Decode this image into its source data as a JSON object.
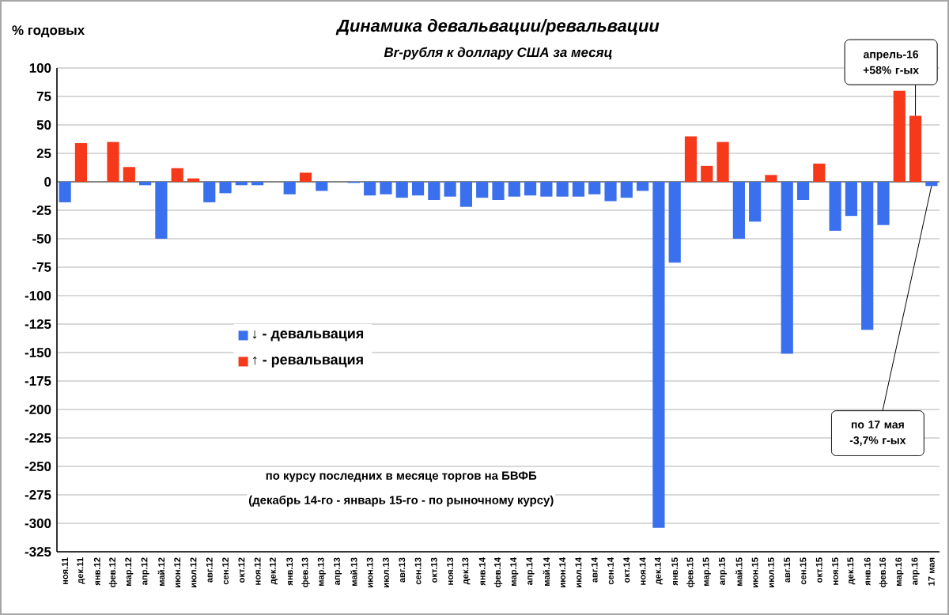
{
  "chart_data": {
    "type": "bar",
    "title": "Динамика девальвации/ревальвации",
    "subtitle": "Br-рубля к доллару США за месяц",
    "ylabel": "% годовых",
    "categories": [
      "ноя.11",
      "дек.11",
      "янв.12",
      "фев.12",
      "мар.12",
      "апр.12",
      "май.12",
      "июн.12",
      "июл.12",
      "авг.12",
      "сен.12",
      "окт.12",
      "ноя.12",
      "дек.12",
      "янв.13",
      "фев.13",
      "мар.13",
      "апр.13",
      "май.13",
      "июн.13",
      "июл.13",
      "авг.13",
      "сен.13",
      "окт.13",
      "ноя.13",
      "дек.13",
      "янв.14",
      "фев.14",
      "мар.14",
      "апр.14",
      "май.14",
      "июн.14",
      "июл.14",
      "авг.14",
      "сен.14",
      "окт.14",
      "ноя.14",
      "дек.14",
      "янв.15",
      "фев.15",
      "мар.15",
      "апр.15",
      "май.15",
      "июн.15",
      "июл.15",
      "авг.15",
      "сен.15",
      "окт.15",
      "ноя.15",
      "дек.15",
      "янв.16",
      "фев.16",
      "мар.16",
      "апр.16",
      "17 мая"
    ],
    "series": [
      {
        "name": "↓ - девальвация",
        "color": "#3a70ee",
        "values": [
          -18,
          null,
          null,
          null,
          null,
          -3,
          -50,
          null,
          null,
          -18,
          -10,
          -3,
          -3,
          null,
          -11,
          null,
          -8,
          null,
          -1,
          -12,
          -11,
          -14,
          -12,
          -16,
          -13,
          -22,
          -14,
          -16,
          -13,
          -12,
          -13,
          -13,
          -13,
          -11,
          -17,
          -14,
          -8,
          -304,
          -71,
          null,
          null,
          null,
          -50,
          -35,
          null,
          -151,
          -16,
          null,
          -43,
          -30,
          -130,
          -38,
          null,
          null,
          -3.7
        ]
      },
      {
        "name": "↑ - ревальвация",
        "color": "#f5391a",
        "values": [
          null,
          34,
          null,
          35,
          13,
          null,
          null,
          12,
          3,
          null,
          null,
          null,
          null,
          null,
          null,
          8,
          null,
          null,
          null,
          null,
          null,
          null,
          null,
          null,
          null,
          null,
          null,
          null,
          null,
          null,
          null,
          null,
          null,
          null,
          null,
          null,
          null,
          null,
          null,
          40,
          14,
          35,
          null,
          null,
          6,
          null,
          null,
          16,
          null,
          null,
          null,
          null,
          80,
          58,
          null
        ]
      }
    ],
    "ylim": [
      -325,
      100
    ],
    "yticks": [
      100,
      75,
      50,
      25,
      0,
      -25,
      -50,
      -75,
      -100,
      -125,
      -150,
      -175,
      -200,
      -225,
      -250,
      -275,
      -300,
      -325
    ],
    "grid": "y",
    "legend": "left",
    "annotations": [
      {
        "text": "апрель-16 +58% г-ых",
        "x": "апр.16",
        "y": 58
      },
      {
        "text": "по 17 мая -3,7% г-ых",
        "x": "17 мая",
        "y": -3.7
      },
      "по курсу последних в месяце торгов на БВФБ",
      "(декабрь 14-го - январь 15-го - по рыночному курсу)"
    ]
  }
}
